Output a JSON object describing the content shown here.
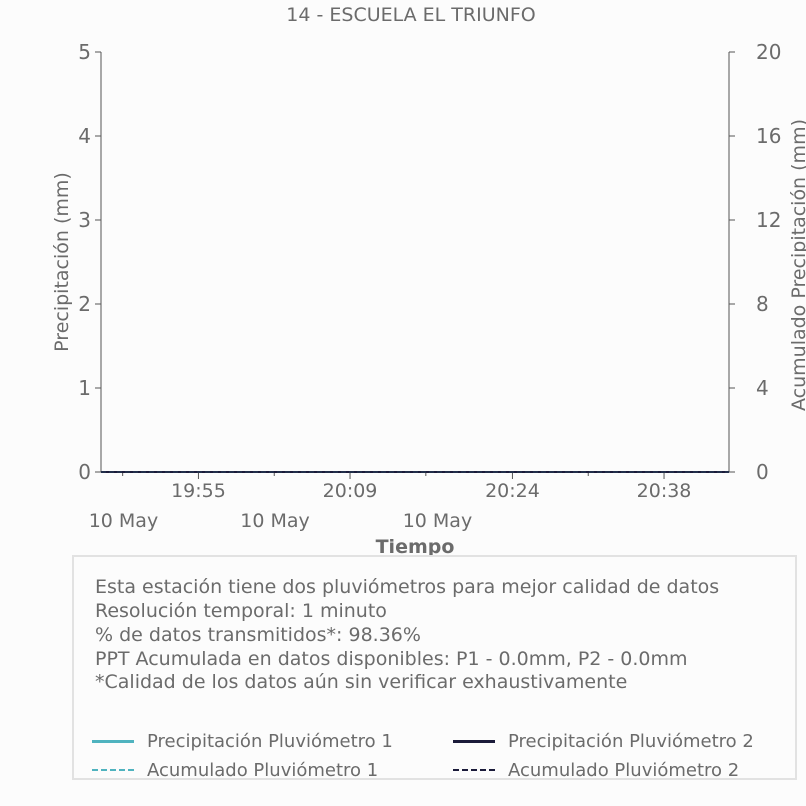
{
  "chart_data": {
    "type": "line",
    "title": "14 - ESCUELA EL TRIUNFO",
    "xlabel": "Tiempo",
    "ylabel": "Precipitación (mm)",
    "y2label": "Acumulado Precipitación (mm)",
    "ylim": [
      0,
      5
    ],
    "y2lim": [
      0,
      20
    ],
    "yticks": [
      "0",
      "1",
      "2",
      "3",
      "4",
      "5"
    ],
    "y2ticks": [
      "0",
      "4",
      "8",
      "12",
      "16",
      "20"
    ],
    "xticks": [
      {
        "time": "19:55",
        "date": "10 May"
      },
      {
        "time": "20:09",
        "date": "10 May"
      },
      {
        "time": "20:24",
        "date": "10 May"
      },
      {
        "time": "20:38",
        "date": ""
      }
    ],
    "x_range": [
      "19:46",
      "20:44"
    ],
    "grid": false,
    "series": [
      {
        "name": "Precipitación Pluviómetro 1",
        "axis": "left",
        "color": "#4fb3bf",
        "style": "solid",
        "x": [
          "19:46",
          "20:44"
        ],
        "values": [
          0,
          0
        ]
      },
      {
        "name": "Precipitación Pluviómetro 2",
        "axis": "left",
        "color": "#1b1b3a",
        "style": "solid",
        "x": [
          "19:46",
          "20:44"
        ],
        "values": [
          0,
          0
        ]
      },
      {
        "name": "Acumulado Pluviómetro 1",
        "axis": "right",
        "color": "#4fb3bf",
        "style": "dashed",
        "x": [
          "19:46",
          "20:44"
        ],
        "values": [
          0,
          0
        ]
      },
      {
        "name": "Acumulado Pluviómetro 2",
        "axis": "right",
        "color": "#1b1b3a",
        "style": "dashed",
        "x": [
          "19:46",
          "20:44"
        ],
        "values": [
          0,
          0
        ]
      }
    ]
  },
  "info": {
    "line1": "Esta estación tiene dos pluviómetros para mejor calidad de datos",
    "line2": "Resolución temporal: 1 minuto",
    "line3": "% de datos transmitidos*: 98.36%",
    "line4": "PPT Acumulada en datos disponibles: P1 - 0.0mm, P2 - 0.0mm",
    "line5": "*Calidad de los datos aún sin verificar exhaustivamente"
  }
}
